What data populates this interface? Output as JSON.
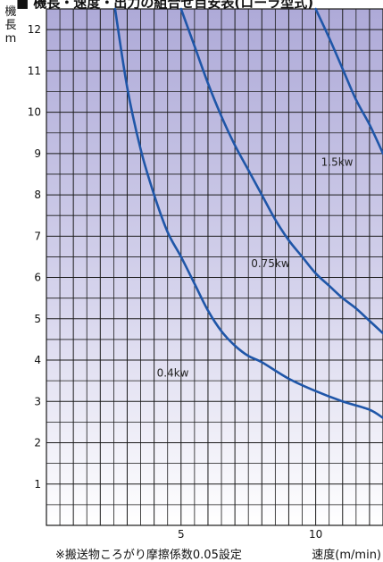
{
  "title": "■ 機長・速度・出力の組合せ目安表(ローラ型式)",
  "footnote": "※搬送物ころがり摩擦係数0.05設定",
  "colors": {
    "curve": "#1f56a8",
    "grid": "#1a1a1a",
    "bg_top": "#aeaad8",
    "bg_bottom": "#ffffff"
  },
  "chart_data": {
    "type": "line",
    "title": "",
    "xlabel": "速度(m/min)",
    "ylabel": [
      "機",
      "長",
      "m"
    ],
    "xlim": [
      0,
      12.5
    ],
    "ylim": [
      0,
      12.5
    ],
    "x_ticks": [
      5,
      10
    ],
    "y_ticks": [
      1,
      2,
      3,
      4,
      5,
      6,
      7,
      8,
      9,
      10,
      11,
      12
    ],
    "grid": true,
    "series": [
      {
        "name": "0.4kw",
        "label_at": [
          4.1,
          3.6
        ],
        "points": [
          [
            2.55,
            12.5
          ],
          [
            3.0,
            10.6
          ],
          [
            3.5,
            9.1
          ],
          [
            4.0,
            8.0
          ],
          [
            4.5,
            7.1
          ],
          [
            5.0,
            6.5
          ],
          [
            5.5,
            5.85
          ],
          [
            6.0,
            5.2
          ],
          [
            6.5,
            4.7
          ],
          [
            7.0,
            4.35
          ],
          [
            7.5,
            4.1
          ],
          [
            8.0,
            3.95
          ],
          [
            9.0,
            3.55
          ],
          [
            10.0,
            3.25
          ],
          [
            11.0,
            3.0
          ],
          [
            12.0,
            2.8
          ],
          [
            12.5,
            2.6
          ]
        ]
      },
      {
        "name": "0.75kw",
        "label_at": [
          7.6,
          6.25
        ],
        "points": [
          [
            5.0,
            12.5
          ],
          [
            5.5,
            11.6
          ],
          [
            6.0,
            10.7
          ],
          [
            6.5,
            9.9
          ],
          [
            7.0,
            9.2
          ],
          [
            7.5,
            8.6
          ],
          [
            8.0,
            8.0
          ],
          [
            8.5,
            7.4
          ],
          [
            9.0,
            6.9
          ],
          [
            9.5,
            6.5
          ],
          [
            10.0,
            6.1
          ],
          [
            10.5,
            5.8
          ],
          [
            11.0,
            5.5
          ],
          [
            11.5,
            5.25
          ],
          [
            12.0,
            4.95
          ],
          [
            12.5,
            4.65
          ]
        ]
      },
      {
        "name": "1.5kw",
        "label_at": [
          10.2,
          8.7
        ],
        "points": [
          [
            10.0,
            12.5
          ],
          [
            10.5,
            11.8
          ],
          [
            11.0,
            11.05
          ],
          [
            11.5,
            10.3
          ],
          [
            12.0,
            9.7
          ],
          [
            12.5,
            9.0
          ]
        ]
      }
    ]
  }
}
